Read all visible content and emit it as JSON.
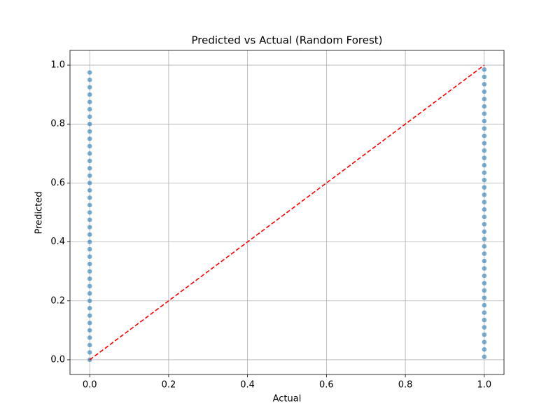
{
  "chart_data": {
    "type": "scatter",
    "title": "Predicted vs Actual (Random Forest)",
    "x_label": "Actual",
    "y_label": "Predicted",
    "series": [
      {
        "type": "scatter",
        "color": "#1f77b4",
        "x": [
          0,
          0,
          0,
          0,
          0,
          0,
          0,
          0,
          0,
          0,
          0,
          0,
          0,
          0,
          0,
          0,
          0,
          0,
          0,
          0,
          0,
          0,
          0,
          0,
          0,
          0,
          0,
          0,
          0,
          0,
          0,
          0,
          0,
          0,
          0,
          0,
          0,
          0,
          0,
          0,
          1,
          1,
          1,
          1,
          1,
          1,
          1,
          1,
          1,
          1,
          1,
          1,
          1,
          1,
          1,
          1,
          1,
          1,
          1,
          1,
          1,
          1,
          1,
          1,
          1,
          1,
          1,
          1,
          1,
          1,
          1,
          1,
          1,
          1,
          1,
          1,
          1,
          1,
          1,
          1
        ],
        "values": [
          0,
          0.025,
          0.05,
          0.075,
          0.1,
          0.125,
          0.15,
          0.175,
          0.2,
          0.225,
          0.25,
          0.275,
          0.3,
          0.325,
          0.35,
          0.375,
          0.4,
          0.425,
          0.45,
          0.475,
          0.5,
          0.525,
          0.55,
          0.575,
          0.6,
          0.625,
          0.65,
          0.675,
          0.7,
          0.725,
          0.75,
          0.775,
          0.8,
          0.825,
          0.85,
          0.875,
          0.9,
          0.925,
          0.95,
          0.975,
          0.01,
          0.035,
          0.06,
          0.085,
          0.11,
          0.135,
          0.16,
          0.185,
          0.21,
          0.235,
          0.26,
          0.285,
          0.31,
          0.335,
          0.36,
          0.385,
          0.41,
          0.435,
          0.46,
          0.485,
          0.51,
          0.535,
          0.56,
          0.585,
          0.61,
          0.635,
          0.66,
          0.685,
          0.71,
          0.735,
          0.76,
          0.785,
          0.81,
          0.835,
          0.86,
          0.885,
          0.91,
          0.935,
          0.96,
          0.985
        ]
      },
      {
        "type": "line",
        "color": "#ff0000",
        "dash": true,
        "x": [
          0,
          1
        ],
        "values": [
          0,
          1
        ]
      }
    ],
    "xlim": [
      -0.05,
      1.05
    ],
    "ylim": [
      -0.05,
      1.05
    ],
    "xticks": [
      {
        "value": 0,
        "label": "0.0"
      },
      {
        "value": 0.2,
        "label": "0.2"
      },
      {
        "value": 0.4,
        "label": "0.4"
      },
      {
        "value": 0.6,
        "label": "0.6"
      },
      {
        "value": 0.8,
        "label": "0.8"
      },
      {
        "value": 1,
        "label": "1.0"
      }
    ],
    "yticks": [
      {
        "value": 0,
        "label": "0.0"
      },
      {
        "value": 0.2,
        "label": "0.2"
      },
      {
        "value": 0.4,
        "label": "0.4"
      },
      {
        "value": 0.6,
        "label": "0.6"
      },
      {
        "value": 0.8,
        "label": "0.8"
      },
      {
        "value": 1,
        "label": "1.0"
      }
    ],
    "grid": true
  }
}
